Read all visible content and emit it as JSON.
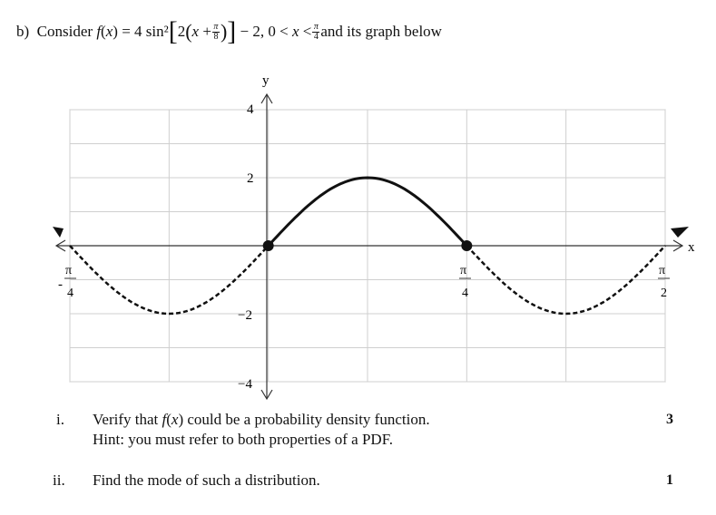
{
  "question": {
    "label": "b)",
    "intro": "Consider",
    "func": "f",
    "var": "x",
    "eq": "=",
    "coef": "4",
    "trig": "sin²",
    "inner_coef": "2",
    "plus": "+",
    "pi": "π",
    "den8": "8",
    "den4": "4",
    "minus2": "− 2,",
    "zero": "0 <",
    "lt": "<",
    "tail": "and its graph below"
  },
  "graph": {
    "x_axis_label": "x",
    "y_axis_label": "y",
    "y_ticks": [
      "4",
      "2",
      "−2",
      "−4"
    ],
    "x_ticks": [
      {
        "sign": "-",
        "num": "π",
        "den": "4"
      },
      {
        "sign": "",
        "num": "π",
        "den": "4"
      },
      {
        "sign": "",
        "num": "π",
        "den": "2"
      }
    ]
  },
  "chart_data": {
    "type": "line",
    "function": "f(x) = 4 sin^2[2(x + π/8)] − 2",
    "domain_solid": [
      0,
      0.7854
    ],
    "domain_dashed_left": [
      -0.7854,
      0
    ],
    "domain_dashed_right": [
      0.7854,
      1.5708
    ],
    "xlim": [
      -0.7854,
      1.5708
    ],
    "ylim": [
      -4,
      4
    ],
    "x_gridlines": [
      -0.7854,
      -0.3927,
      0,
      0.3927,
      0.7854,
      1.1781,
      1.5708
    ],
    "y_gridlines": [
      -4,
      -3,
      -2,
      -1,
      0,
      1,
      2,
      3,
      4
    ],
    "endpoints": [
      [
        0,
        0
      ],
      [
        0.7854,
        0
      ]
    ],
    "max_point": [
      0.3927,
      2
    ],
    "min_points": [
      [
        -0.3927,
        -2
      ],
      [
        1.1781,
        -2
      ]
    ]
  },
  "parts": [
    {
      "label": "i.",
      "line1": "Verify that",
      "line1_rest": "could be a probability density function.",
      "line2": "Hint: you must refer to both properties of a PDF.",
      "marks": "3"
    },
    {
      "label": "ii.",
      "line1": "Find the mode of such a distribution.",
      "marks": "1"
    }
  ]
}
